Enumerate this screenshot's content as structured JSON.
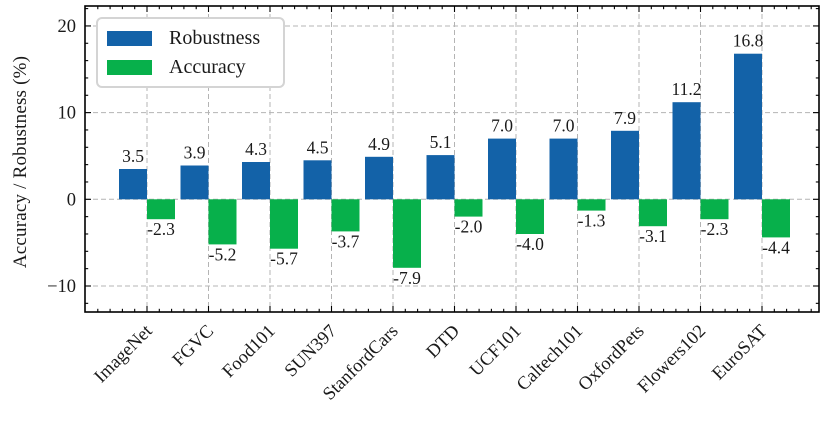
{
  "chart_data": {
    "type": "bar",
    "title": "",
    "xlabel": "",
    "ylabel": "Accuracy / Robustness (%)",
    "categories": [
      "ImageNet",
      "FGVC",
      "Food101",
      "SUN397",
      "StanfordCars",
      "DTD",
      "UCF101",
      "Caltech101",
      "OxfordPets",
      "Flowers102",
      "EuroSAT"
    ],
    "series": [
      {
        "name": "Robustness",
        "color": "#1362a8",
        "values": [
          3.5,
          3.9,
          4.3,
          4.5,
          4.9,
          5.1,
          7.0,
          7.0,
          7.9,
          11.2,
          16.8
        ]
      },
      {
        "name": "Accuracy",
        "color": "#07b04b",
        "values": [
          -2.3,
          -5.2,
          -5.7,
          -3.7,
          -7.9,
          -2.0,
          -4.0,
          -1.3,
          -3.1,
          -2.3,
          -4.4
        ]
      }
    ],
    "ylim": [
      -13.0,
      22.3
    ],
    "yticks": [
      -10,
      0,
      10,
      20
    ],
    "grid": true,
    "grid_color": "#b4b4b4",
    "legend_position": "upper left",
    "bar_labels": true,
    "bar_label_format": "0.1f"
  }
}
